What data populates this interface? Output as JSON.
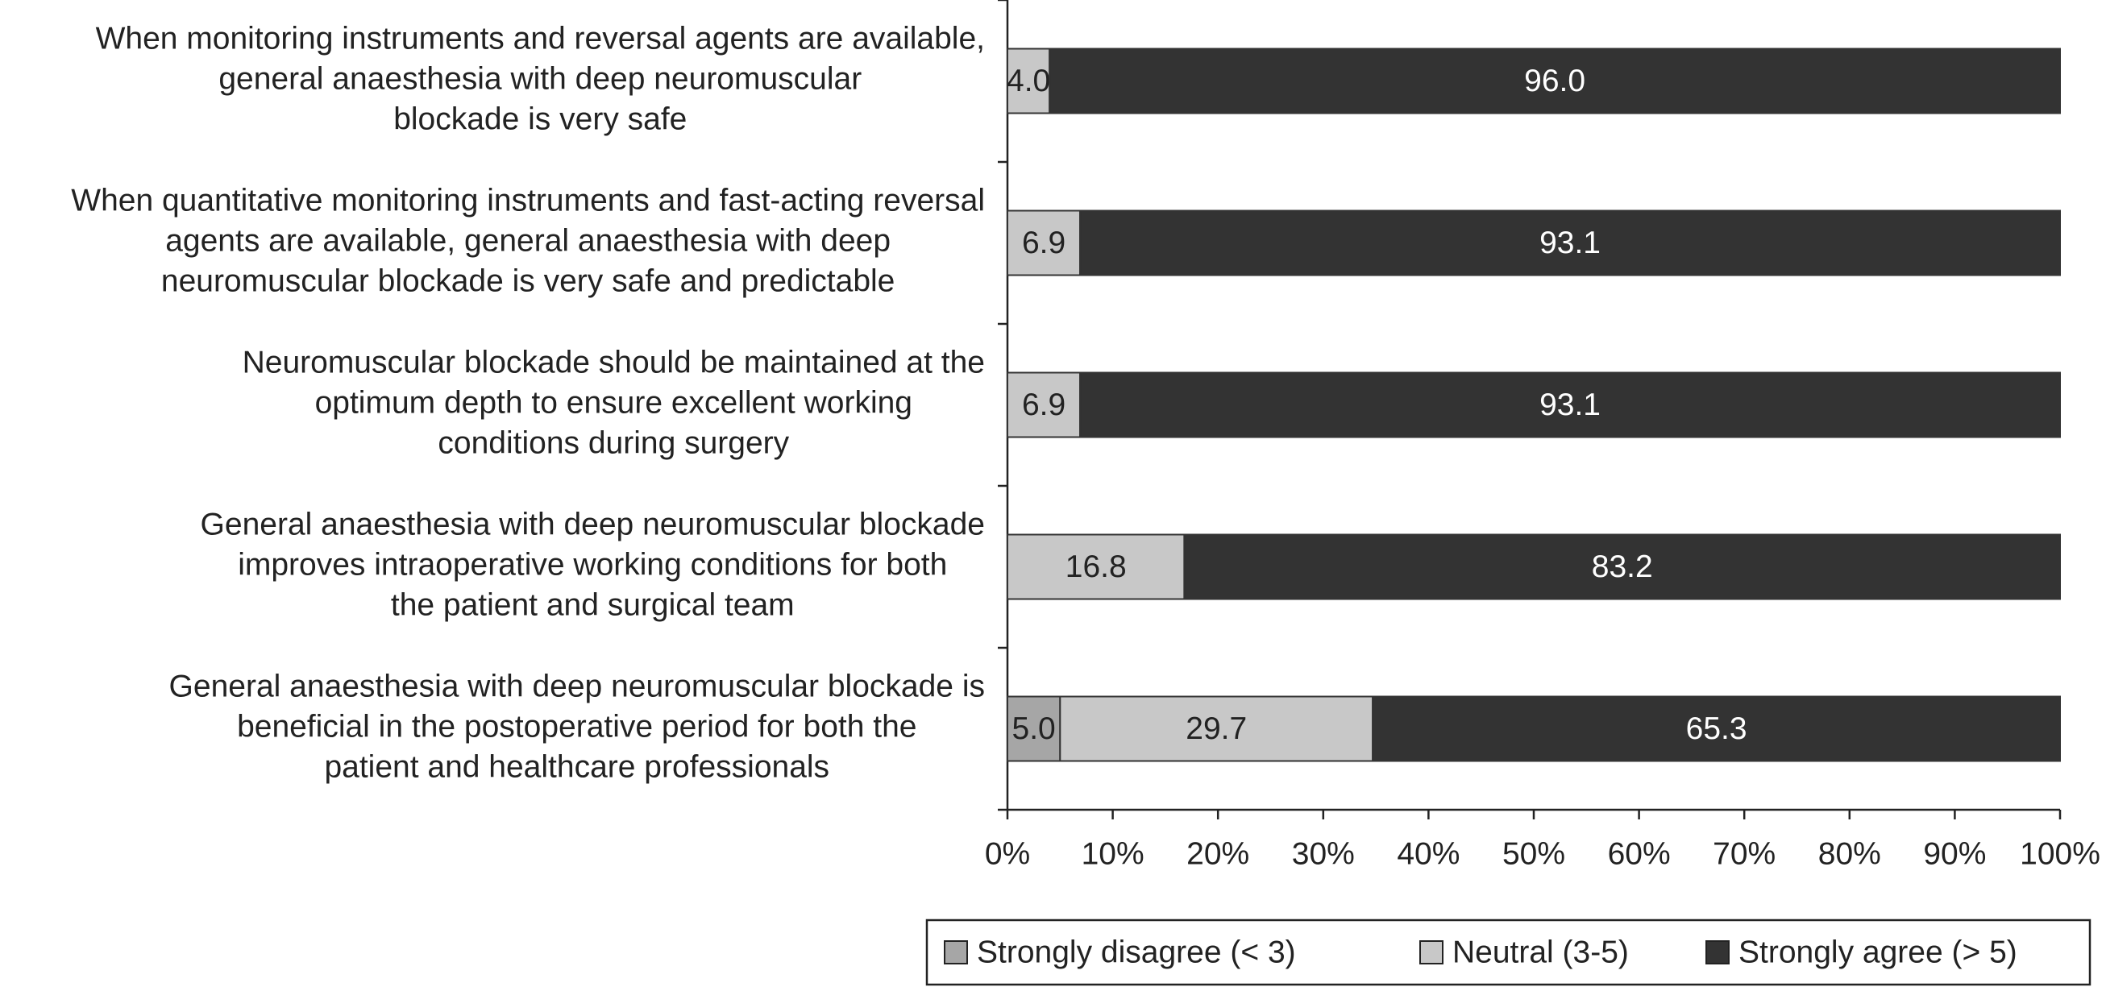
{
  "chart_data": {
    "type": "stacked-barh",
    "categories": [
      "When monitoring instruments and reversal agents are available,\ngeneral anaesthesia with deep neuromuscular\nblockade is very safe",
      "When quantitative monitoring instruments and fast-acting reversal\nagents are available, general anaesthesia with deep\nneuromuscular blockade is very safe and predictable",
      "Neuromuscular blockade should be maintained at the\noptimum depth to ensure excellent working\nconditions during surgery",
      "General anaesthesia with deep neuromuscular blockade\nimproves intraoperative working conditions for both\nthe patient and surgical team",
      "General anaesthesia with deep neuromuscular blockade is\nbeneficial in the postoperative period for both the\npatient and healthcare professionals"
    ],
    "series": [
      {
        "name": "Strongly disagree (< 3)",
        "color": "#a6a6a6",
        "values": [
          null,
          null,
          null,
          null,
          5.0
        ],
        "value_labels": [
          null,
          null,
          null,
          null,
          "5.0"
        ]
      },
      {
        "name": "Neutral (3-5)",
        "color": "#c8c8c8",
        "values": [
          4.0,
          6.9,
          6.9,
          16.8,
          29.7
        ],
        "value_labels": [
          "4.0",
          "6.9",
          "6.9",
          "16.8",
          "29.7"
        ]
      },
      {
        "name": "Strongly agree (> 5)",
        "color": "#333333",
        "values": [
          96.0,
          93.1,
          93.1,
          83.2,
          65.3
        ],
        "value_labels": [
          "96.0",
          "93.1",
          "93.1",
          "83.2",
          "65.3"
        ]
      }
    ],
    "xlim": [
      0,
      100
    ],
    "xticks": [
      {
        "value": 0,
        "label": "0%"
      },
      {
        "value": 10,
        "label": "10%"
      },
      {
        "value": 20,
        "label": "20%"
      },
      {
        "value": 30,
        "label": "30%"
      },
      {
        "value": 40,
        "label": "40%"
      },
      {
        "value": 50,
        "label": "50%"
      },
      {
        "value": 60,
        "label": "60%"
      },
      {
        "value": 70,
        "label": "70%"
      },
      {
        "value": 80,
        "label": "80%"
      },
      {
        "value": 90,
        "label": "90%"
      },
      {
        "value": 100,
        "label": "100%"
      }
    ],
    "legend": "bottom"
  }
}
